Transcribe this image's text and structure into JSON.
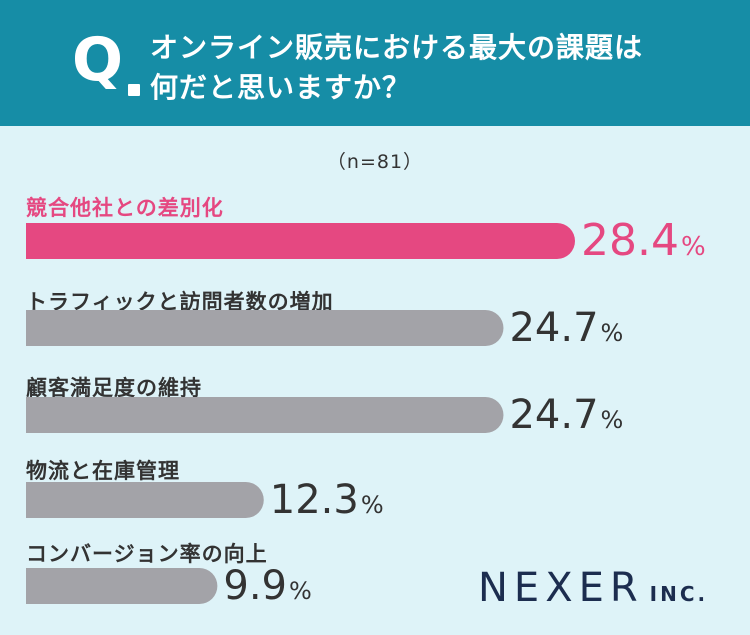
{
  "header": {
    "q_mark": "Q",
    "question_line1": "オンライン販売における最大の課題は",
    "question_line2": "何だと思いますか？"
  },
  "sample": "（n=81）",
  "chart_data": {
    "type": "bar",
    "orientation": "horizontal",
    "title": "オンライン販売における最大の課題は何だと思いますか？",
    "n": 81,
    "unit": "%",
    "categories": [
      "競合他社との差別化",
      "トラフィックと訪問者数の増加",
      "顧客満足度の維持",
      "物流と在庫管理",
      "コンバージョン率の向上"
    ],
    "values": [
      28.4,
      24.7,
      24.7,
      12.3,
      9.9
    ],
    "value_labels": [
      "28.4",
      "24.7",
      "24.7",
      "12.3",
      "9.9"
    ],
    "highlight_index": 0,
    "colors": {
      "highlight": "#e54881",
      "default": "#a3a3a8",
      "header": "#168da6",
      "background": "#def3f8"
    }
  },
  "logo": {
    "name": "NEXER",
    "suffix": "INC."
  }
}
